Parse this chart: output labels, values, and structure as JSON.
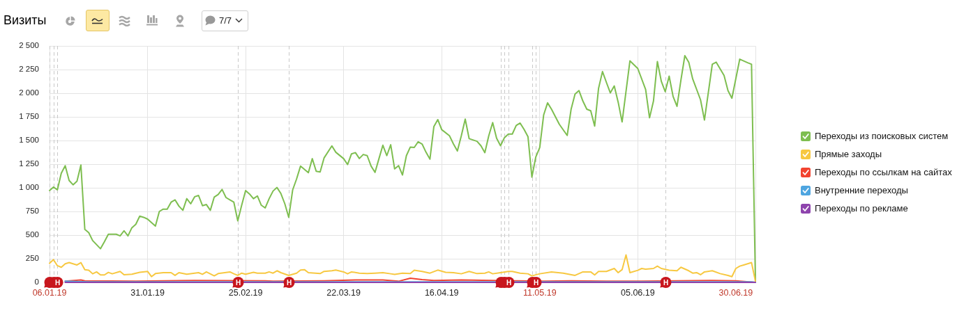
{
  "chart_data": {
    "type": "line",
    "title": "Визиты",
    "annotations": [
      "7/7"
    ],
    "xlim": [
      "2019-01-06",
      "2019-07-05"
    ],
    "xticks": [
      {
        "value": "2019-01-06",
        "label": "06.01.19"
      },
      {
        "value": "2019-01-31",
        "label": "31.01.19"
      },
      {
        "value": "2019-02-25",
        "label": "25.02.19"
      },
      {
        "value": "2019-03-22",
        "label": "22.03.19"
      },
      {
        "value": "2019-04-16",
        "label": "16.04.19"
      },
      {
        "value": "2019-05-11",
        "label": "11.05.19"
      },
      {
        "value": "2019-06-05",
        "label": "05.06.19"
      },
      {
        "value": "2019-06-30",
        "label": "30.06.19"
      }
    ],
    "ylim": [
      0,
      2500
    ],
    "yticks": [
      0,
      250,
      500,
      750,
      {
        "value": 1000,
        "label": "1 000"
      },
      {
        "value": 1250,
        "label": "1 250"
      },
      {
        "value": 1500,
        "label": "1 500"
      },
      {
        "value": 1750,
        "label": "1 750"
      },
      {
        "value": 2000,
        "label": "2 000"
      },
      {
        "value": 2250,
        "label": "2 250"
      },
      {
        "value": 2500,
        "label": "2 500"
      }
    ],
    "grid": true,
    "legend": "right",
    "marker": "none",
    "ref_lines": [
      {
        "axis": "x",
        "value": "2019-01-06",
        "line_style": "dashed"
      },
      {
        "axis": "x",
        "value": "2019-01-07",
        "line_style": "dashed"
      },
      {
        "axis": "x",
        "value": "2019-01-08",
        "label": "Н",
        "line_style": "dashed"
      },
      {
        "axis": "x",
        "value": "2019-02-23",
        "label": "Н",
        "line_style": "dashed"
      },
      {
        "axis": "x",
        "value": "2019-03-08",
        "label": "Н",
        "line_style": "dashed"
      },
      {
        "axis": "x",
        "value": "2019-05-01",
        "line_style": "dashed"
      },
      {
        "axis": "x",
        "value": "2019-05-02",
        "line_style": "dashed"
      },
      {
        "axis": "x",
        "value": "2019-05-03",
        "label": "Н",
        "line_style": "dashed"
      },
      {
        "axis": "x",
        "value": "2019-05-09",
        "line_style": "dashed"
      },
      {
        "axis": "x",
        "value": "2019-05-10",
        "label": "Н",
        "line_style": "dashed"
      },
      {
        "axis": "x",
        "value": "2019-06-12",
        "label": "Н",
        "line_style": "dashed"
      }
    ],
    "series": [
      {
        "name": "Переходы из поисковых систем",
        "color": "#7ebe50",
        "x": [
          "2019-01-06",
          "2019-01-07",
          "2019-01-08",
          "2019-01-09",
          "2019-01-10",
          "2019-01-11",
          "2019-01-12",
          "2019-01-13",
          "2019-01-14",
          "2019-01-15",
          "2019-01-16",
          "2019-01-17",
          "2019-01-19",
          "2019-01-20",
          "2019-01-21",
          "2019-01-23",
          "2019-01-24",
          "2019-01-25",
          "2019-01-26",
          "2019-01-27",
          "2019-01-28",
          "2019-01-29",
          "2019-01-30",
          "2019-01-31",
          "2019-02-02",
          "2019-02-03",
          "2019-02-04",
          "2019-02-05",
          "2019-02-06",
          "2019-02-07",
          "2019-02-08",
          "2019-02-09",
          "2019-02-10",
          "2019-02-11",
          "2019-02-12",
          "2019-02-13",
          "2019-02-14",
          "2019-02-15",
          "2019-02-16",
          "2019-02-17",
          "2019-02-18",
          "2019-02-19",
          "2019-02-20",
          "2019-02-21",
          "2019-02-22",
          "2019-02-23",
          "2019-02-24",
          "2019-02-25",
          "2019-02-26",
          "2019-02-27",
          "2019-02-28",
          "2019-03-01",
          "2019-03-02",
          "2019-03-03",
          "2019-03-04",
          "2019-03-05",
          "2019-03-06",
          "2019-03-07",
          "2019-03-08",
          "2019-03-09",
          "2019-03-10",
          "2019-03-11",
          "2019-03-13",
          "2019-03-14",
          "2019-03-15",
          "2019-03-16",
          "2019-03-17",
          "2019-03-19",
          "2019-03-20",
          "2019-03-22",
          "2019-03-23",
          "2019-03-24",
          "2019-03-25",
          "2019-03-26",
          "2019-03-27",
          "2019-03-28",
          "2019-03-29",
          "2019-03-30",
          "2019-03-31",
          "2019-04-01",
          "2019-04-02",
          "2019-04-03",
          "2019-04-04",
          "2019-04-05",
          "2019-04-06",
          "2019-04-07",
          "2019-04-08",
          "2019-04-09",
          "2019-04-10",
          "2019-04-11",
          "2019-04-12",
          "2019-04-13",
          "2019-04-14",
          "2019-04-15",
          "2019-04-16",
          "2019-04-18",
          "2019-04-19",
          "2019-04-20",
          "2019-04-21",
          "2019-04-22",
          "2019-04-23",
          "2019-04-25",
          "2019-04-26",
          "2019-04-27",
          "2019-04-28",
          "2019-04-29",
          "2019-04-30",
          "2019-05-01",
          "2019-05-02",
          "2019-05-03",
          "2019-05-04",
          "2019-05-05",
          "2019-05-06",
          "2019-05-07",
          "2019-05-08",
          "2019-05-09",
          "2019-05-10",
          "2019-05-11",
          "2019-05-12",
          "2019-05-13",
          "2019-05-14",
          "2019-05-16",
          "2019-05-18",
          "2019-05-19",
          "2019-05-20",
          "2019-05-21",
          "2019-05-22",
          "2019-05-23",
          "2019-05-24",
          "2019-05-25",
          "2019-05-26",
          "2019-05-27",
          "2019-05-28",
          "2019-05-29",
          "2019-05-30",
          "2019-05-31",
          "2019-06-01",
          "2019-06-03",
          "2019-06-05",
          "2019-06-07",
          "2019-06-08",
          "2019-06-09",
          "2019-06-10",
          "2019-06-11",
          "2019-06-12",
          "2019-06-13",
          "2019-06-14",
          "2019-06-15",
          "2019-06-16",
          "2019-06-17",
          "2019-06-18",
          "2019-06-19",
          "2019-06-21",
          "2019-06-22",
          "2019-06-24",
          "2019-06-25",
          "2019-06-27",
          "2019-06-28",
          "2019-06-29",
          "2019-07-01",
          "2019-07-03",
          "2019-07-04",
          "2019-07-05"
        ],
        "values": [
          971,
          1008,
          978,
          1155,
          1234,
          1077,
          1032,
          1069,
          1241,
          560,
          526,
          442,
          356,
          430,
          509,
          509,
          492,
          546,
          492,
          578,
          614,
          700,
          688,
          669,
          595,
          750,
          774,
          774,
          848,
          873,
          806,
          762,
          885,
          831,
          905,
          919,
          811,
          823,
          762,
          902,
          929,
          983,
          897,
          873,
          848,
          651,
          816,
          971,
          934,
          885,
          914,
          816,
          787,
          885,
          966,
          1003,
          939,
          831,
          688,
          978,
          1094,
          1229,
          1160,
          1308,
          1175,
          1168,
          1315,
          1443,
          1376,
          1308,
          1246,
          1359,
          1372,
          1310,
          1352,
          1340,
          1229,
          1163,
          1308,
          1450,
          1340,
          1455,
          1200,
          1234,
          1136,
          1340,
          1431,
          1426,
          1487,
          1463,
          1376,
          1303,
          1647,
          1721,
          1615,
          1549,
          1463,
          1389,
          1549,
          1726,
          1519,
          1492,
          1445,
          1372,
          1549,
          1689,
          1524,
          1445,
          1530,
          1568,
          1568,
          1659,
          1684,
          1617,
          1541,
          1113,
          1327,
          1426,
          1770,
          1898,
          1831,
          1671,
          1553,
          1831,
          1991,
          2028,
          1917,
          1831,
          1814,
          1652,
          2052,
          2229,
          2114,
          2003,
          2077,
          1905,
          1696,
          2342,
          2261,
          2040,
          1740,
          1917,
          2335,
          2126,
          2016,
          2180,
          1966,
          1861,
          2139,
          2397,
          2328,
          2151,
          1930,
          1716,
          2306,
          2328,
          2188,
          2028,
          1947,
          2360,
          2323,
          2306,
          12
        ]
      },
      {
        "name": "Прямые заходы",
        "color": "#f7c841",
        "x": [
          "2019-01-06",
          "2019-01-07",
          "2019-01-08",
          "2019-01-09",
          "2019-01-10",
          "2019-01-11",
          "2019-01-13",
          "2019-01-14",
          "2019-01-15",
          "2019-01-16",
          "2019-01-17",
          "2019-01-18",
          "2019-01-19",
          "2019-01-20",
          "2019-01-21",
          "2019-01-22",
          "2019-01-24",
          "2019-01-25",
          "2019-01-27",
          "2019-01-29",
          "2019-01-31",
          "2019-02-01",
          "2019-02-02",
          "2019-02-04",
          "2019-02-06",
          "2019-02-07",
          "2019-02-08",
          "2019-02-10",
          "2019-02-13",
          "2019-02-14",
          "2019-02-15",
          "2019-02-17",
          "2019-02-18",
          "2019-02-21",
          "2019-02-22",
          "2019-02-23",
          "2019-02-24",
          "2019-02-25",
          "2019-02-27",
          "2019-02-28",
          "2019-03-02",
          "2019-03-03",
          "2019-03-04",
          "2019-03-05",
          "2019-03-06",
          "2019-03-08",
          "2019-03-10",
          "2019-03-11",
          "2019-03-12",
          "2019-03-13",
          "2019-03-16",
          "2019-03-17",
          "2019-03-19",
          "2019-03-20",
          "2019-03-22",
          "2019-03-23",
          "2019-03-24",
          "2019-03-26",
          "2019-03-28",
          "2019-03-30",
          "2019-04-01",
          "2019-04-03",
          "2019-04-04",
          "2019-04-06",
          "2019-04-08",
          "2019-04-09",
          "2019-04-11",
          "2019-04-13",
          "2019-04-15",
          "2019-04-17",
          "2019-04-19",
          "2019-04-21",
          "2019-04-23",
          "2019-04-25",
          "2019-04-27",
          "2019-04-28",
          "2019-04-29",
          "2019-05-01",
          "2019-05-03",
          "2019-05-04",
          "2019-05-06",
          "2019-05-08",
          "2019-05-09",
          "2019-05-11",
          "2019-05-14",
          "2019-05-17",
          "2019-05-20",
          "2019-05-22",
          "2019-05-24",
          "2019-05-25",
          "2019-05-26",
          "2019-05-28",
          "2019-05-30",
          "2019-05-31",
          "2019-06-01",
          "2019-06-02",
          "2019-06-03",
          "2019-06-05",
          "2019-06-06",
          "2019-06-07",
          "2019-06-09",
          "2019-06-10",
          "2019-06-11",
          "2019-06-13",
          "2019-06-15",
          "2019-06-16",
          "2019-06-18",
          "2019-06-19",
          "2019-06-20",
          "2019-06-21",
          "2019-06-22",
          "2019-06-24",
          "2019-06-26",
          "2019-06-28",
          "2019-06-29",
          "2019-06-30",
          "2019-07-01",
          "2019-07-02",
          "2019-07-04",
          "2019-07-05"
        ],
        "values": [
          202,
          241,
          177,
          160,
          197,
          209,
          184,
          209,
          135,
          128,
          91,
          111,
          79,
          79,
          106,
          91,
          116,
          81,
          86,
          106,
          116,
          61,
          93,
          103,
          103,
          74,
          103,
          86,
          103,
          86,
          111,
          69,
          93,
          111,
          91,
          74,
          98,
          86,
          106,
          98,
          98,
          111,
          98,
          123,
          103,
          74,
          98,
          130,
          135,
          103,
          93,
          116,
          123,
          130,
          111,
          91,
          111,
          98,
          93,
          98,
          103,
          91,
          84,
          98,
          93,
          128,
          116,
          98,
          130,
          106,
          103,
          91,
          116,
          93,
          98,
          111,
          91,
          103,
          116,
          116,
          98,
          91,
          69,
          91,
          111,
          98,
          74,
          111,
          111,
          79,
          116,
          116,
          147,
          103,
          135,
          290,
          103,
          128,
          147,
          140,
          147,
          172,
          147,
          128,
          123,
          160,
          123,
          98,
          103,
          81,
          111,
          123,
          93,
          74,
          61,
          147,
          172,
          184,
          209,
          12
        ]
      },
      {
        "name": "Переходы по ссылкам на сайтах",
        "color": "#f2432f",
        "x": [
          "2019-01-10",
          "2019-01-14",
          "2019-01-15",
          "2019-01-28",
          "2019-02-12",
          "2019-03-02",
          "2019-03-04",
          "2019-03-17",
          "2019-03-25",
          "2019-04-01",
          "2019-04-05",
          "2019-04-08",
          "2019-04-11",
          "2019-04-14",
          "2019-04-21",
          "2019-04-29",
          "2019-05-05",
          "2019-05-12",
          "2019-05-19",
          "2019-05-28",
          "2019-06-06",
          "2019-06-15",
          "2019-06-24",
          "2019-06-30",
          "2019-07-05"
        ],
        "values": [
          12,
          25,
          17,
          12,
          20,
          17,
          12,
          17,
          25,
          25,
          12,
          44,
          29,
          20,
          25,
          20,
          17,
          12,
          17,
          12,
          12,
          17,
          20,
          17,
          0
        ]
      },
      {
        "name": "Внутренние переходы",
        "color": "#4ea5e0",
        "x": [
          "2019-01-10",
          "2019-01-16",
          "2019-02-15",
          "2019-03-27",
          "2019-05-06",
          "2019-06-15",
          "2019-07-04",
          "2019-07-05"
        ],
        "values": [
          12,
          6,
          6,
          6,
          6,
          6,
          6,
          0
        ]
      },
      {
        "name": "Переходы по рекламе",
        "color": "#8e44ad",
        "x": [
          "2019-01-10",
          "2019-02-15",
          "2019-03-27",
          "2019-05-06",
          "2019-06-15",
          "2019-07-05"
        ],
        "values": [
          0,
          0,
          0,
          0,
          0,
          0
        ]
      }
    ]
  }
}
